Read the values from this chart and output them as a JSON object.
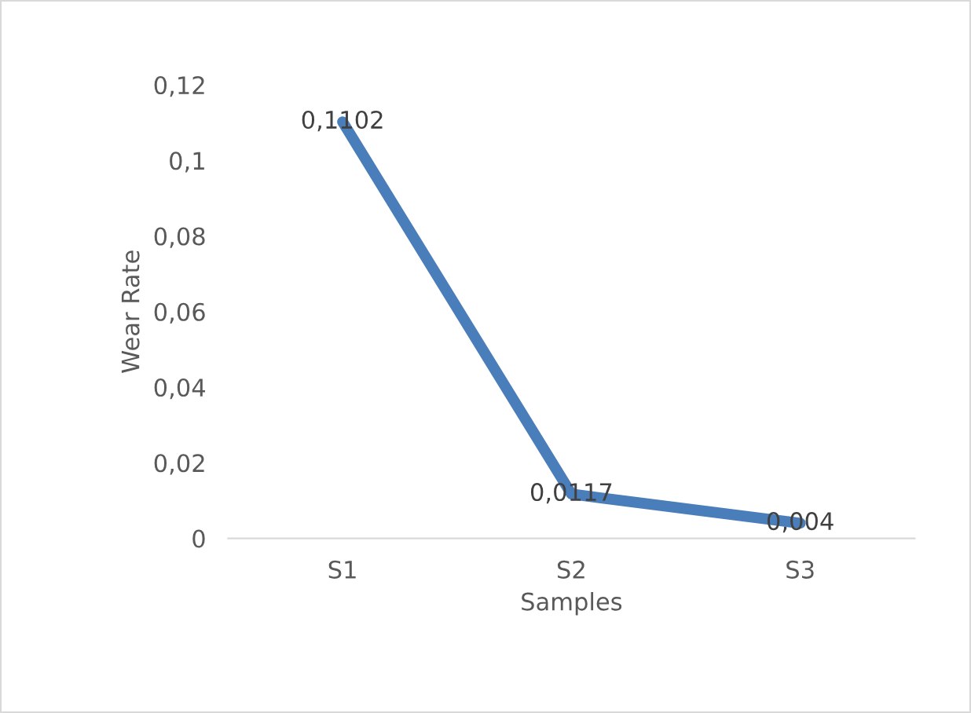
{
  "chart_data": {
    "type": "line",
    "xlabel": "Samples",
    "ylabel": "Wear Rate",
    "categories": [
      "S1",
      "S2",
      "S3"
    ],
    "series": [
      {
        "color": "#4a7ebb",
        "values": [
          0.1102,
          0.0117,
          0.004
        ],
        "value_labels": [
          "0,1102",
          "0,0117",
          "0,004"
        ]
      }
    ],
    "ylim": [
      0,
      0.12
    ],
    "yticks": [
      {
        "value": 0,
        "label": "0"
      },
      {
        "value": 0.02,
        "label": "0,02"
      },
      {
        "value": 0.04,
        "label": "0,04"
      },
      {
        "value": 0.06,
        "label": "0,06"
      },
      {
        "value": 0.08,
        "label": "0,08"
      },
      {
        "value": 0.1,
        "label": "0,1"
      },
      {
        "value": 0.12,
        "label": "0,12"
      }
    ],
    "grid": false,
    "legend": false,
    "marker": "none",
    "line_style": "solid"
  }
}
